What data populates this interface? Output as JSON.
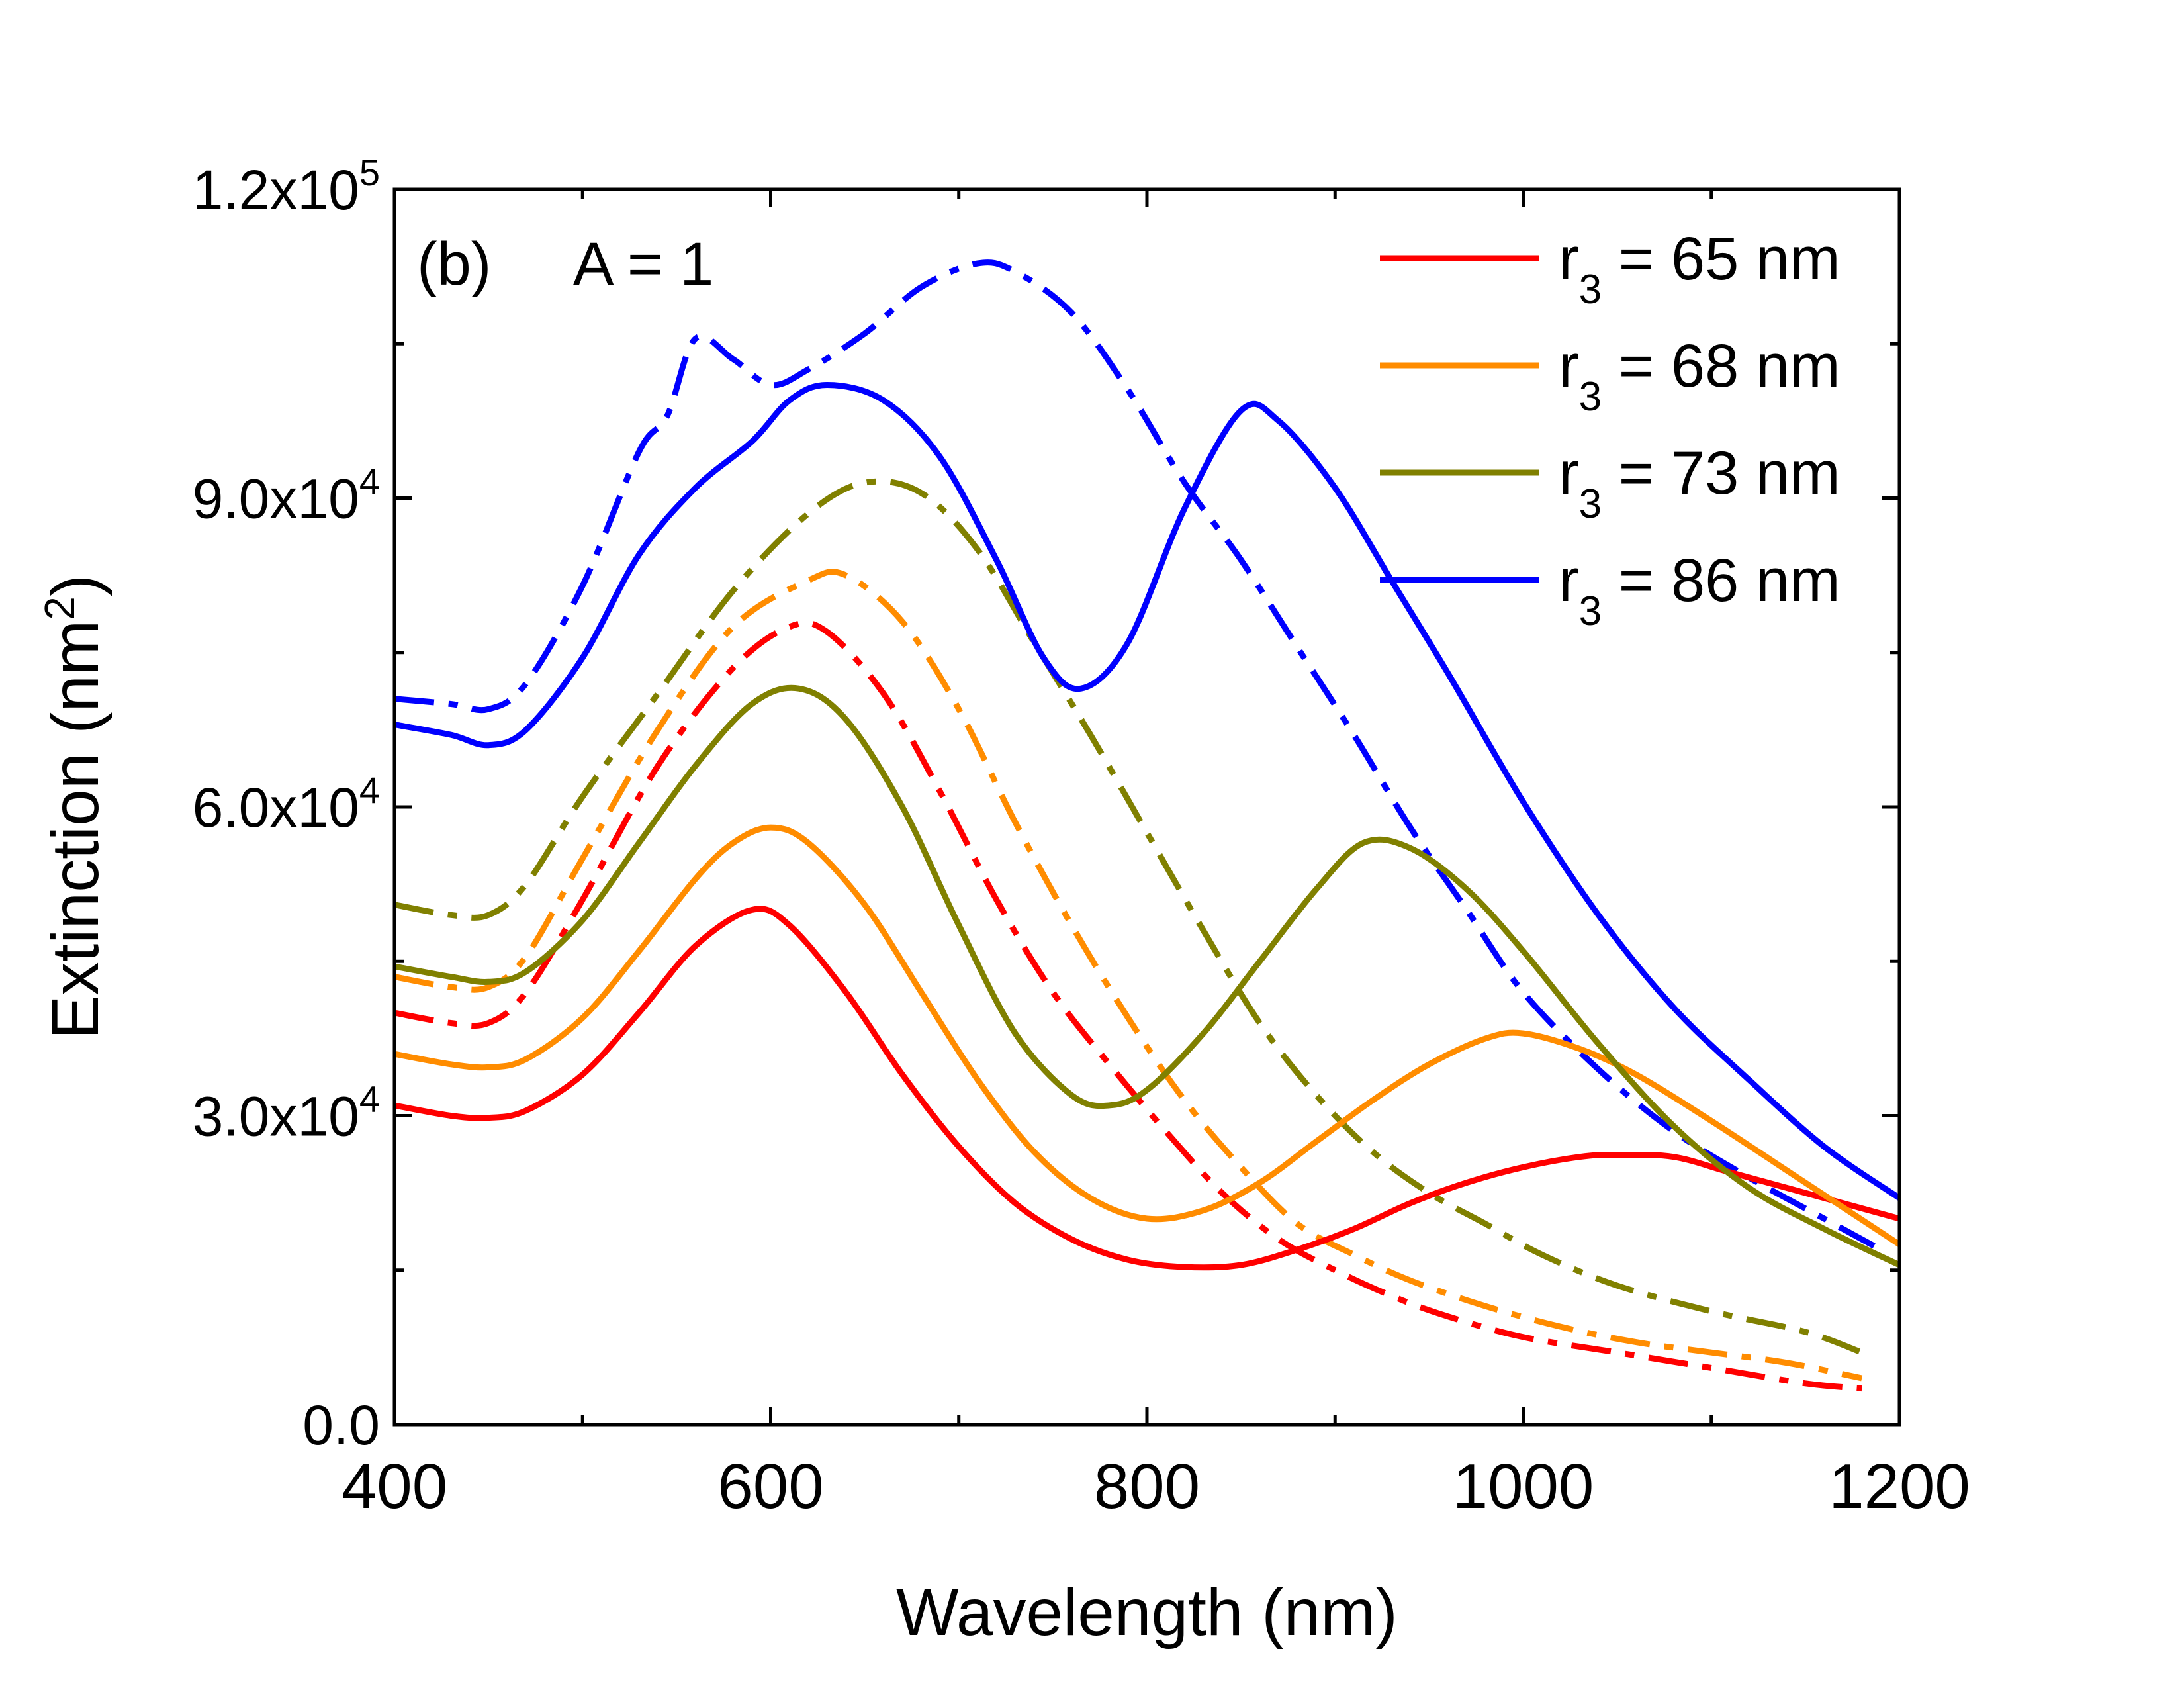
{
  "chart_data": {
    "type": "line",
    "panel_label": "(b)",
    "annotation": "A = 1",
    "xlabel": "Wavelength (nm)",
    "ylabel": {
      "main": "Extinction (nm",
      "sup": "2",
      "tail": ")"
    },
    "xlim": [
      400,
      1200
    ],
    "ylim": [
      0,
      120000
    ],
    "x_ticks": [
      {
        "v": 400,
        "label": "400"
      },
      {
        "v": 600,
        "label": "600"
      },
      {
        "v": 800,
        "label": "800"
      },
      {
        "v": 1000,
        "label": "1000"
      },
      {
        "v": 1200,
        "label": "1200"
      }
    ],
    "x_minor_ticks": [
      500,
      700,
      900,
      1100
    ],
    "y_ticks": [
      {
        "v": 0,
        "base": "0.0",
        "exp": ""
      },
      {
        "v": 30000,
        "base": "3.0x10",
        "exp": "4"
      },
      {
        "v": 60000,
        "base": "6.0x10",
        "exp": "4"
      },
      {
        "v": 90000,
        "base": "9.0x10",
        "exp": "4"
      },
      {
        "v": 120000,
        "base": "1.2x10",
        "exp": "5"
      }
    ],
    "y_minor_ticks": [
      15000,
      45000,
      75000,
      105000
    ],
    "legend": {
      "position": "top-right",
      "entries": [
        {
          "pre": "r",
          "sub": "3",
          "post": " = 65 nm",
          "color": "#ff0000"
        },
        {
          "pre": "r",
          "sub": "3",
          "post": " = 68 nm",
          "color": "#ff8c00"
        },
        {
          "pre": "r",
          "sub": "3",
          "post": " = 73 nm",
          "color": "#808000"
        },
        {
          "pre": "r",
          "sub": "3",
          "post": " = 86 nm",
          "color": "#0000ff"
        }
      ]
    },
    "series": [
      {
        "name": "r3 = 65 nm (solid)",
        "color": "#ff0000",
        "style": "solid",
        "points": [
          [
            400,
            31000
          ],
          [
            430,
            30000
          ],
          [
            450,
            29800
          ],
          [
            470,
            30500
          ],
          [
            500,
            34000
          ],
          [
            530,
            40000
          ],
          [
            560,
            46500
          ],
          [
            590,
            50000
          ],
          [
            610,
            48500
          ],
          [
            640,
            42000
          ],
          [
            670,
            34000
          ],
          [
            700,
            27000
          ],
          [
            730,
            21500
          ],
          [
            760,
            18000
          ],
          [
            790,
            16000
          ],
          [
            820,
            15300
          ],
          [
            850,
            15500
          ],
          [
            880,
            17000
          ],
          [
            910,
            19000
          ],
          [
            940,
            21500
          ],
          [
            970,
            23500
          ],
          [
            1000,
            25000
          ],
          [
            1030,
            26000
          ],
          [
            1050,
            26200
          ],
          [
            1080,
            26000
          ],
          [
            1110,
            24500
          ],
          [
            1150,
            22500
          ],
          [
            1200,
            20000
          ]
        ]
      },
      {
        "name": "r3 = 68 nm (solid)",
        "color": "#ff8c00",
        "style": "solid",
        "points": [
          [
            400,
            36000
          ],
          [
            430,
            35000
          ],
          [
            450,
            34700
          ],
          [
            470,
            35500
          ],
          [
            500,
            39500
          ],
          [
            530,
            46000
          ],
          [
            560,
            53000
          ],
          [
            580,
            56500
          ],
          [
            600,
            58000
          ],
          [
            620,
            56500
          ],
          [
            650,
            50500
          ],
          [
            680,
            42000
          ],
          [
            710,
            33500
          ],
          [
            740,
            26500
          ],
          [
            770,
            22000
          ],
          [
            800,
            20000
          ],
          [
            830,
            20800
          ],
          [
            860,
            23500
          ],
          [
            890,
            27500
          ],
          [
            920,
            31500
          ],
          [
            950,
            35000
          ],
          [
            980,
            37500
          ],
          [
            1000,
            38000
          ],
          [
            1030,
            36500
          ],
          [
            1060,
            34000
          ],
          [
            1100,
            29500
          ],
          [
            1150,
            23500
          ],
          [
            1200,
            17500
          ]
        ]
      },
      {
        "name": "r3 = 73 nm (solid)",
        "color": "#808000",
        "style": "solid",
        "points": [
          [
            400,
            44500
          ],
          [
            430,
            43500
          ],
          [
            450,
            43000
          ],
          [
            470,
            44000
          ],
          [
            500,
            49000
          ],
          [
            530,
            56500
          ],
          [
            560,
            64000
          ],
          [
            590,
            70000
          ],
          [
            615,
            71500
          ],
          [
            640,
            68500
          ],
          [
            670,
            60000
          ],
          [
            700,
            48500
          ],
          [
            730,
            38000
          ],
          [
            760,
            32000
          ],
          [
            780,
            31000
          ],
          [
            800,
            32500
          ],
          [
            830,
            38000
          ],
          [
            860,
            45000
          ],
          [
            890,
            52000
          ],
          [
            915,
            56500
          ],
          [
            940,
            56000
          ],
          [
            970,
            52000
          ],
          [
            1000,
            46000
          ],
          [
            1040,
            37000
          ],
          [
            1080,
            29000
          ],
          [
            1120,
            23000
          ],
          [
            1160,
            19000
          ],
          [
            1200,
            15500
          ]
        ]
      },
      {
        "name": "r3 = 86 nm (solid)",
        "color": "#0000ff",
        "style": "solid",
        "points": [
          [
            400,
            68000
          ],
          [
            430,
            67000
          ],
          [
            450,
            66000
          ],
          [
            470,
            67500
          ],
          [
            500,
            74500
          ],
          [
            530,
            84500
          ],
          [
            560,
            91000
          ],
          [
            590,
            95500
          ],
          [
            610,
            99500
          ],
          [
            630,
            101000
          ],
          [
            660,
            99500
          ],
          [
            690,
            94000
          ],
          [
            720,
            84000
          ],
          [
            745,
            74500
          ],
          [
            765,
            71500
          ],
          [
            790,
            76000
          ],
          [
            820,
            89000
          ],
          [
            850,
            98500
          ],
          [
            870,
            97500
          ],
          [
            900,
            91000
          ],
          [
            930,
            82000
          ],
          [
            960,
            73000
          ],
          [
            1000,
            60500
          ],
          [
            1040,
            49500
          ],
          [
            1080,
            40500
          ],
          [
            1120,
            33500
          ],
          [
            1160,
            27000
          ],
          [
            1200,
            22000
          ]
        ]
      },
      {
        "name": "r3 = 65 nm (dash-dot)",
        "color": "#ff0000",
        "style": "dashdot",
        "points": [
          [
            400,
            40000
          ],
          [
            430,
            39000
          ],
          [
            450,
            39000
          ],
          [
            470,
            42000
          ],
          [
            500,
            51000
          ],
          [
            540,
            64000
          ],
          [
            580,
            73500
          ],
          [
            610,
            77500
          ],
          [
            630,
            77000
          ],
          [
            660,
            71000
          ],
          [
            690,
            61500
          ],
          [
            720,
            51000
          ],
          [
            750,
            42000
          ],
          [
            780,
            35000
          ],
          [
            810,
            28500
          ],
          [
            840,
            22500
          ],
          [
            870,
            18000
          ],
          [
            900,
            15000
          ],
          [
            930,
            12500
          ],
          [
            960,
            10500
          ],
          [
            1000,
            8500
          ],
          [
            1050,
            7000
          ],
          [
            1100,
            5500
          ],
          [
            1150,
            4000
          ],
          [
            1180,
            3500
          ]
        ]
      },
      {
        "name": "r3 = 68 nm (dash-dot)",
        "color": "#ff8c00",
        "style": "dashdot",
        "points": [
          [
            400,
            43500
          ],
          [
            430,
            42500
          ],
          [
            450,
            42500
          ],
          [
            470,
            45500
          ],
          [
            500,
            55000
          ],
          [
            540,
            67500
          ],
          [
            580,
            77500
          ],
          [
            620,
            82000
          ],
          [
            640,
            82500
          ],
          [
            670,
            78000
          ],
          [
            700,
            69500
          ],
          [
            730,
            58500
          ],
          [
            760,
            48500
          ],
          [
            790,
            39500
          ],
          [
            820,
            31500
          ],
          [
            850,
            25000
          ],
          [
            880,
            19500
          ],
          [
            910,
            16500
          ],
          [
            940,
            14000
          ],
          [
            980,
            11500
          ],
          [
            1020,
            9500
          ],
          [
            1060,
            8000
          ],
          [
            1100,
            7000
          ],
          [
            1140,
            6000
          ],
          [
            1180,
            4500
          ]
        ]
      },
      {
        "name": "r3 = 73 nm (dash-dot)",
        "color": "#808000",
        "style": "dashdot",
        "points": [
          [
            400,
            50500
          ],
          [
            430,
            49500
          ],
          [
            450,
            49500
          ],
          [
            470,
            52500
          ],
          [
            500,
            61000
          ],
          [
            540,
            71000
          ],
          [
            580,
            81000
          ],
          [
            620,
            88500
          ],
          [
            650,
            91500
          ],
          [
            680,
            90500
          ],
          [
            710,
            85000
          ],
          [
            740,
            76000
          ],
          [
            770,
            67000
          ],
          [
            800,
            57500
          ],
          [
            830,
            48000
          ],
          [
            860,
            39000
          ],
          [
            890,
            32000
          ],
          [
            920,
            26500
          ],
          [
            950,
            22500
          ],
          [
            980,
            19500
          ],
          [
            1010,
            16500
          ],
          [
            1050,
            13500
          ],
          [
            1100,
            11000
          ],
          [
            1150,
            9000
          ],
          [
            1180,
            7000
          ]
        ]
      },
      {
        "name": "r3 = 86 nm (dash-dot)",
        "color": "#0000ff",
        "style": "dashdot",
        "points": [
          [
            400,
            70500
          ],
          [
            430,
            70000
          ],
          [
            450,
            69500
          ],
          [
            470,
            72000
          ],
          [
            500,
            81500
          ],
          [
            530,
            94500
          ],
          [
            545,
            98000
          ],
          [
            560,
            105500
          ],
          [
            580,
            103500
          ],
          [
            600,
            101000
          ],
          [
            620,
            102500
          ],
          [
            650,
            106000
          ],
          [
            680,
            110500
          ],
          [
            710,
            112800
          ],
          [
            730,
            112000
          ],
          [
            760,
            108000
          ],
          [
            790,
            100500
          ],
          [
            820,
            91500
          ],
          [
            850,
            84000
          ],
          [
            880,
            75500
          ],
          [
            910,
            67000
          ],
          [
            940,
            58000
          ],
          [
            970,
            50000
          ],
          [
            1000,
            42000
          ],
          [
            1040,
            34500
          ],
          [
            1080,
            28500
          ],
          [
            1120,
            24000
          ],
          [
            1160,
            20000
          ],
          [
            1190,
            17000
          ]
        ]
      }
    ]
  }
}
